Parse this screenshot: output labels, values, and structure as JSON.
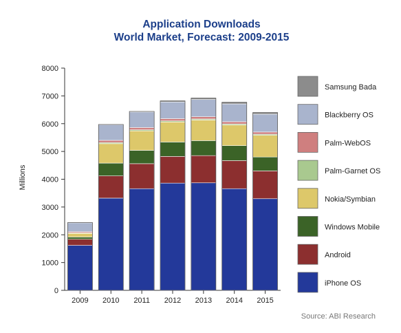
{
  "chart_data": {
    "type": "bar",
    "stacked": true,
    "title": "Application Downloads",
    "subtitle": "World Market, Forecast: 2009-2015",
    "ylabel": "Millions",
    "xlabel": "",
    "ylim": [
      0,
      8000
    ],
    "yticks": [
      0,
      1000,
      2000,
      3000,
      4000,
      5000,
      6000,
      7000,
      8000
    ],
    "categories": [
      "2009",
      "2010",
      "2011",
      "2012",
      "2013",
      "2014",
      "2015"
    ],
    "series": [
      {
        "name": "iPhone OS",
        "color": "#23399a",
        "values": [
          1620,
          3320,
          3660,
          3860,
          3870,
          3660,
          3300
        ]
      },
      {
        "name": "Android",
        "color": "#8c2f2f",
        "values": [
          220,
          800,
          900,
          960,
          980,
          1010,
          1000
        ]
      },
      {
        "name": "Windows Mobile",
        "color": "#3b6327",
        "values": [
          80,
          460,
          480,
          520,
          540,
          540,
          500
        ]
      },
      {
        "name": "Nokia/Symbian",
        "color": "#ddc86a",
        "values": [
          130,
          700,
          700,
          720,
          740,
          740,
          780
        ]
      },
      {
        "name": "Palm-Garnet OS",
        "color": "#a9c98f",
        "values": [
          20,
          40,
          40,
          40,
          40,
          40,
          40
        ]
      },
      {
        "name": "Palm-WebOS",
        "color": "#cf7f7f",
        "values": [
          40,
          80,
          80,
          80,
          80,
          80,
          80
        ]
      },
      {
        "name": "Blackberry OS",
        "color": "#a9b4cd",
        "values": [
          320,
          560,
          560,
          600,
          620,
          640,
          640
        ]
      },
      {
        "name": "Samsung Bada",
        "color": "#8c8c8c",
        "values": [
          10,
          10,
          20,
          40,
          50,
          60,
          60
        ]
      }
    ],
    "legend_order": [
      "Samsung Bada",
      "Blackberry OS",
      "Palm-WebOS",
      "Palm-Garnet OS",
      "Nokia/Symbian",
      "Windows Mobile",
      "Android",
      "iPhone OS"
    ],
    "legend_position": "right",
    "grid": false
  },
  "source": "Source: ABI Research"
}
